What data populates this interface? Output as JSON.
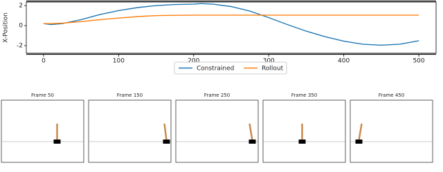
{
  "chart_data": {
    "type": "line",
    "y_label": "X-Position",
    "x": [
      0,
      10,
      25,
      50,
      75,
      100,
      125,
      150,
      175,
      200,
      210,
      225,
      250,
      275,
      300,
      325,
      350,
      375,
      400,
      425,
      450,
      475,
      500
    ],
    "series": [
      {
        "name": "Constrained",
        "color": "#1f77b4",
        "values": [
          0.2,
          0.1,
          0.2,
          0.6,
          1.1,
          1.5,
          1.8,
          2.0,
          2.1,
          2.15,
          2.2,
          2.15,
          1.9,
          1.45,
          0.8,
          0.1,
          -0.55,
          -1.1,
          -1.55,
          -1.85,
          -1.95,
          -1.85,
          -1.5
        ]
      },
      {
        "name": "Rollout",
        "color": "#ff7f0e",
        "values": [
          0.2,
          0.2,
          0.25,
          0.4,
          0.6,
          0.75,
          0.9,
          1.0,
          1.03,
          1.05,
          1.05,
          1.05,
          1.05,
          1.05,
          1.05,
          1.05,
          1.05,
          1.05,
          1.05,
          1.05,
          1.05,
          1.05,
          1.05
        ]
      }
    ],
    "xlim": [
      -23,
      523
    ],
    "xticks": [
      0,
      100,
      200,
      300,
      400,
      500
    ],
    "ylim": [
      -2.75,
      2.35
    ],
    "yticks": [
      -2,
      0,
      2
    ],
    "legend": "bottom"
  },
  "frames": [
    {
      "title": "Frame 50"
    },
    {
      "title": "Frame 150"
    },
    {
      "title": "Frame 250"
    },
    {
      "title": "Frame 350"
    },
    {
      "title": "Frame 450"
    }
  ]
}
